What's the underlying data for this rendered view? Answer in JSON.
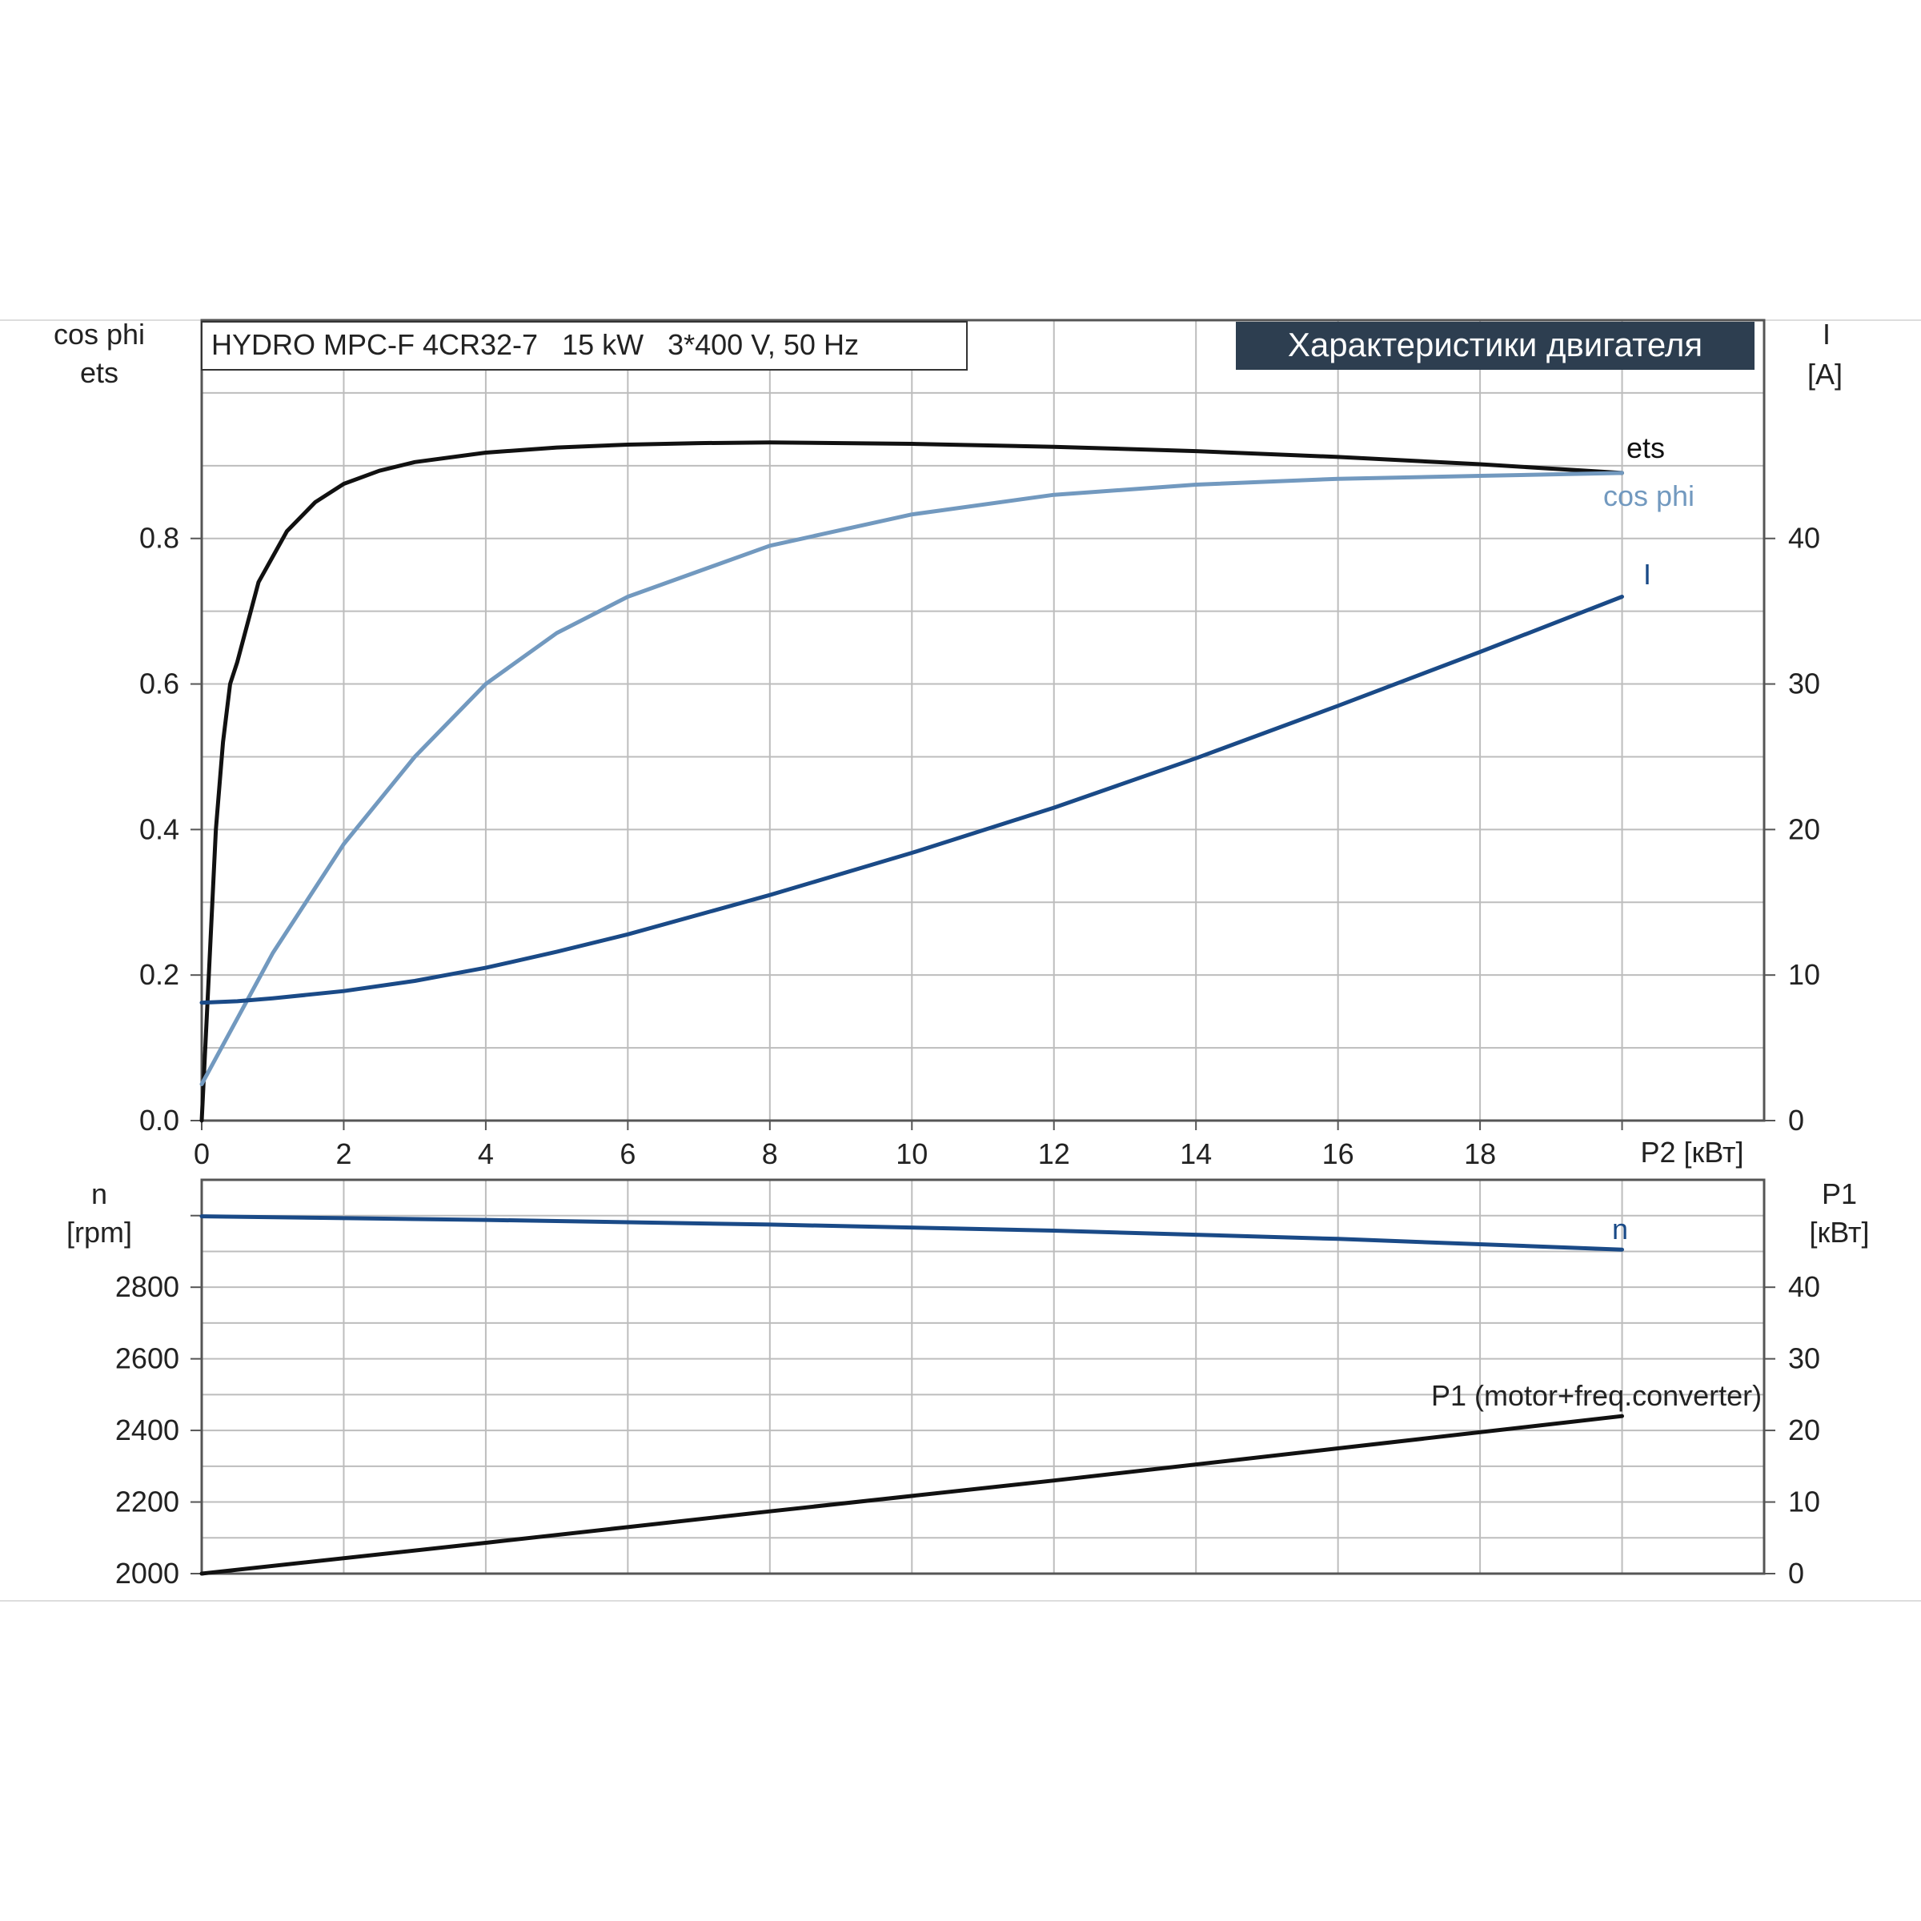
{
  "product_label": "HYDRO MPC-F 4CR32-7   15 kW   3*400 V, 50 Hz",
  "section_title": "Характеристики двигателя",
  "colors": {
    "black_curve": "#111111",
    "light_blue_curve": "#7299bf",
    "dark_blue_curve": "#1a4a87",
    "grid": "#bdbdbd",
    "axis": "#555555",
    "title_bg": "#2d3e50",
    "title_text": "#ffffff"
  },
  "chart_data": [
    {
      "type": "line",
      "panel": "upper",
      "x_label": "P2 [кВт]",
      "x_ticks": [
        "0",
        "2",
        "4",
        "6",
        "8",
        "10",
        "12",
        "14",
        "16",
        "18"
      ],
      "xlim": [
        0,
        22
      ],
      "y_left_label": [
        "cos phi",
        "ets"
      ],
      "y_left_ticks": [
        "0.0",
        "0.2",
        "0.4",
        "0.6",
        "0.8"
      ],
      "y_left_lim": [
        0,
        1.1
      ],
      "y_right_label": [
        "I",
        "[A]"
      ],
      "y_right_ticks": [
        "0",
        "10",
        "20",
        "30",
        "40"
      ],
      "y_right_lim": [
        0,
        55
      ],
      "grid": true,
      "series": [
        {
          "name": "ets",
          "axis": "left",
          "color_key": "black_curve",
          "x": [
            0,
            0.1,
            0.2,
            0.3,
            0.4,
            0.5,
            0.8,
            1.2,
            1.6,
            2,
            2.5,
            3,
            4,
            5,
            6,
            7,
            8,
            10,
            12,
            14,
            16,
            18,
            20
          ],
          "y": [
            0,
            0.2,
            0.4,
            0.52,
            0.6,
            0.63,
            0.74,
            0.81,
            0.85,
            0.875,
            0.893,
            0.905,
            0.918,
            0.925,
            0.929,
            0.931,
            0.932,
            0.93,
            0.926,
            0.92,
            0.912,
            0.902,
            0.89
          ]
        },
        {
          "name": "cos phi",
          "axis": "left",
          "color_key": "light_blue_curve",
          "x": [
            0,
            0.5,
            1,
            2,
            3,
            4,
            5,
            6,
            8,
            10,
            12,
            14,
            16,
            18,
            20
          ],
          "y": [
            0.05,
            0.14,
            0.23,
            0.38,
            0.5,
            0.6,
            0.67,
            0.72,
            0.79,
            0.833,
            0.86,
            0.874,
            0.882,
            0.886,
            0.89
          ]
        },
        {
          "name": "I",
          "axis": "right",
          "color_key": "dark_blue_curve",
          "x": [
            0,
            0.5,
            1,
            2,
            3,
            4,
            5,
            6,
            8,
            10,
            12,
            14,
            16,
            18,
            20
          ],
          "y": [
            8.1,
            8.2,
            8.4,
            8.9,
            9.6,
            10.5,
            11.6,
            12.8,
            15.5,
            18.4,
            21.5,
            24.9,
            28.5,
            32.2,
            36
          ]
        }
      ],
      "series_labels": [
        "ets",
        "cos phi",
        "I"
      ]
    },
    {
      "type": "line",
      "panel": "lower",
      "x_lim": [
        0,
        22
      ],
      "y_left_label": [
        "n",
        "[rpm]"
      ],
      "y_left_ticks": [
        "2000",
        "2200",
        "2400",
        "2600",
        "2800"
      ],
      "y_left_lim": [
        2000,
        3100
      ],
      "y_right_label": [
        "P1",
        "[кВт]"
      ],
      "y_right_ticks": [
        "0",
        "10",
        "20",
        "30",
        "40"
      ],
      "y_right_lim": [
        0,
        55
      ],
      "grid": true,
      "series": [
        {
          "name": "n",
          "axis": "left",
          "color_key": "dark_blue_curve",
          "x": [
            0,
            4,
            8,
            12,
            16,
            20
          ],
          "y": [
            2998,
            2988,
            2975,
            2958,
            2935,
            2905
          ]
        },
        {
          "name": "P1 (motor+freq.converter)",
          "axis": "right",
          "color_key": "black_curve",
          "x": [
            0,
            4,
            8,
            12,
            16,
            20
          ],
          "y": [
            0,
            4.3,
            8.7,
            13,
            17.5,
            22
          ]
        }
      ],
      "series_labels": [
        "n",
        "P1 (motor+freq.converter)"
      ]
    }
  ]
}
